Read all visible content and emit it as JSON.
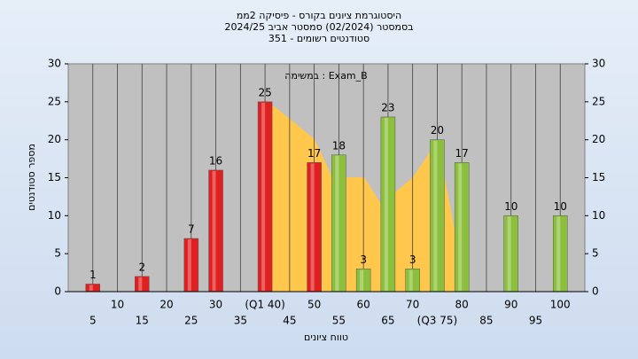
{
  "chart_data": {
    "type": "histogram",
    "title": [
      "היסטוגרמת ציונים בקורס - פיסיקה 2ממ",
      "בסמסטר  (02/2024)  סמסטר אביב 2024/25",
      "סטודנטים רשומים - 351"
    ],
    "annotation": "במשימה : Exam_B",
    "ylabel": "מספר סטודנטים",
    "xlabel": "טווח ציונים",
    "x": [
      5,
      15,
      25,
      30,
      40,
      50,
      55,
      60,
      65,
      70,
      75,
      80,
      90,
      100
    ],
    "values": [
      1,
      2,
      7,
      16,
      25,
      17,
      18,
      3,
      23,
      3,
      20,
      17,
      10,
      10
    ],
    "bar_colors": [
      "#e02020",
      "#e02020",
      "#e02020",
      "#e02020",
      "#e02020",
      "#e02020",
      "#8cbf3c",
      "#8cbf3c",
      "#8cbf3c",
      "#8cbf3c",
      "#8cbf3c",
      "#8cbf3c",
      "#8cbf3c",
      "#8cbf3c"
    ],
    "xlim": [
      0,
      105
    ],
    "xticks": [
      5,
      10,
      15,
      20,
      25,
      30,
      35,
      {
        "value": 40,
        "label": "(Q1 40)"
      },
      45,
      50,
      55,
      60,
      65,
      70,
      {
        "value": 75,
        "label": "(Q3 75)"
      },
      80,
      85,
      90,
      95,
      100
    ],
    "ylim": [
      0,
      30
    ],
    "yticks": [
      0,
      5,
      10,
      15,
      20,
      25,
      30
    ],
    "grid": true
  }
}
